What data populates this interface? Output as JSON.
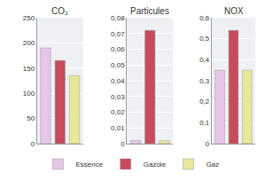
{
  "chart_data": [
    {
      "type": "bar",
      "title": "CO₂",
      "series": [
        {
          "name": "Essence",
          "color": "#e6c6e6",
          "values": [
            190
          ]
        },
        {
          "name": "Gazole",
          "color": "#c64b5c",
          "values": [
            165
          ]
        },
        {
          "name": "Gaz",
          "color": "#e8e89a",
          "values": [
            135
          ]
        }
      ],
      "ylim": [
        0,
        250
      ],
      "yticks": [
        0,
        50,
        100,
        150,
        200,
        250
      ],
      "grid": true,
      "legend": "bottom",
      "tick_labels": "y"
    },
    {
      "type": "bar",
      "title": "Particules",
      "series": [
        {
          "name": "Essence",
          "color": "#e6c6e6",
          "values": [
            0.002
          ]
        },
        {
          "name": "Gazole",
          "color": "#c64b5c",
          "values": [
            0.072
          ]
        },
        {
          "name": "Gaz",
          "color": "#e8e89a",
          "values": [
            0.002
          ]
        }
      ],
      "ylim": [
        0,
        0.08
      ],
      "yticks": [
        0,
        {
          "value": 0.01,
          "label": "0,01"
        },
        {
          "value": 0.02,
          "label": "0,02"
        },
        {
          "value": 0.03,
          "label": "0,03"
        },
        {
          "value": 0.04,
          "label": "0,04"
        },
        {
          "value": 0.05,
          "label": "0,05"
        },
        {
          "value": 0.06,
          "label": "0,06"
        },
        {
          "value": 0.07,
          "label": "0,07"
        },
        {
          "value": 0.08,
          "label": "0,08"
        }
      ],
      "grid": true,
      "legend": "bottom",
      "tick_labels": "y"
    },
    {
      "type": "bar",
      "title": "NOX",
      "series": [
        {
          "name": "Essence",
          "color": "#e6c6e6",
          "values": [
            0.35
          ]
        },
        {
          "name": "Gazole",
          "color": "#c64b5c",
          "values": [
            0.54
          ]
        },
        {
          "name": "Gaz",
          "color": "#e8e89a",
          "values": [
            0.35
          ]
        }
      ],
      "ylim": [
        0,
        0.6
      ],
      "yticks": [
        0,
        {
          "value": 0.1,
          "label": "0,1"
        },
        {
          "value": 0.2,
          "label": "0,2"
        },
        {
          "value": 0.3,
          "label": "0,3"
        },
        {
          "value": 0.4,
          "label": "0,4"
        },
        {
          "value": 0.5,
          "label": "0,5"
        },
        {
          "value": 0.6,
          "label": "0,6"
        }
      ],
      "grid": true,
      "legend": "bottom",
      "tick_labels": "y"
    }
  ]
}
